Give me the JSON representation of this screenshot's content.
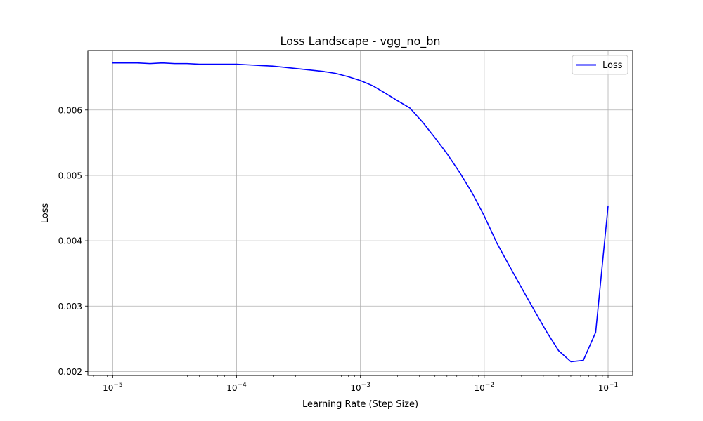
{
  "chart_data": {
    "type": "line",
    "title": "Loss Landscape - vgg_no_bn",
    "xlabel": "Learning Rate (Step Size)",
    "ylabel": "Loss",
    "xscale": "log",
    "xlim": [
      6.3e-06,
      0.158
    ],
    "ylim": [
      0.00194,
      0.00691
    ],
    "grid": true,
    "legend_position": "top-right",
    "x_ticks": [
      {
        "base": "10",
        "exp": "−5",
        "value": 1e-05
      },
      {
        "base": "10",
        "exp": "−4",
        "value": 0.0001
      },
      {
        "base": "10",
        "exp": "−3",
        "value": 0.001
      },
      {
        "base": "10",
        "exp": "−2",
        "value": 0.01
      },
      {
        "base": "10",
        "exp": "−1",
        "value": 0.1
      }
    ],
    "y_ticks": [
      {
        "label": "0.002",
        "value": 0.002
      },
      {
        "label": "0.003",
        "value": 0.003
      },
      {
        "label": "0.004",
        "value": 0.004
      },
      {
        "label": "0.005",
        "value": 0.005
      },
      {
        "label": "0.006",
        "value": 0.006
      }
    ],
    "series": [
      {
        "name": "Loss",
        "color": "#0000ff",
        "x": [
          1e-05,
          1.26e-05,
          1.58e-05,
          2e-05,
          2.51e-05,
          3.16e-05,
          3.98e-05,
          5.01e-05,
          6.31e-05,
          7.94e-05,
          0.0001,
          0.000126,
          0.000158,
          0.0002,
          0.000251,
          0.000316,
          0.000398,
          0.000501,
          0.000631,
          0.000794,
          0.001,
          0.00126,
          0.00158,
          0.002,
          0.00251,
          0.00316,
          0.00398,
          0.00501,
          0.00631,
          0.00794,
          0.01,
          0.0126,
          0.0158,
          0.02,
          0.0251,
          0.0316,
          0.0398,
          0.0501,
          0.0631,
          0.0794,
          0.1
        ],
        "y": [
          0.00672,
          0.00672,
          0.00672,
          0.00671,
          0.00672,
          0.00671,
          0.00671,
          0.0067,
          0.0067,
          0.0067,
          0.0067,
          0.00669,
          0.00668,
          0.00667,
          0.00665,
          0.00663,
          0.00661,
          0.00659,
          0.00656,
          0.00651,
          0.00645,
          0.00637,
          0.00626,
          0.00614,
          0.00603,
          0.00582,
          0.00558,
          0.00533,
          0.00505,
          0.00474,
          0.00438,
          0.00397,
          0.00363,
          0.00328,
          0.00295,
          0.00262,
          0.00232,
          0.00215,
          0.00217,
          0.0026,
          0.00453
        ]
      }
    ]
  }
}
